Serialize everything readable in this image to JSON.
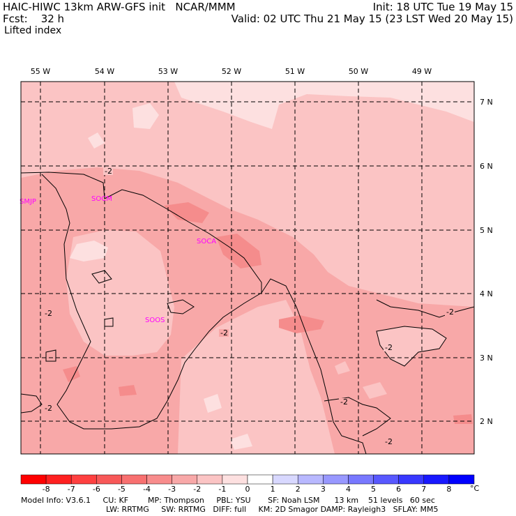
{
  "header": {
    "model": "HAIC-HIWC 13km ARW-GFS init",
    "org": "NCAR/MMM",
    "forecast_label": "Fcst:",
    "forecast_hours": "32 h",
    "field": "Lifted index",
    "init": "Init: 18 UTC Tue 19 May 15",
    "valid": "Valid: 02 UTC Thu 21 May 15 (23 LST Wed 20 May 15)"
  },
  "map": {
    "lon_labels": [
      "55 W",
      "54 W",
      "53 W",
      "52 W",
      "51 W",
      "50 W",
      "49 W"
    ],
    "lat_labels": [
      "7 N",
      "6 N",
      "5 N",
      "4 N",
      "3 N",
      "2 N"
    ],
    "contour_labels": [
      "-2",
      "-2",
      "-2",
      "-2",
      "-2",
      "-2",
      "-2",
      "-2"
    ],
    "stations": [
      "SMJP",
      "SOCM",
      "SOCA",
      "SOOS"
    ],
    "colors": {
      "li_minus1": "#fde0e0",
      "li_minus2": "#fbc4c4",
      "li_minus3": "#f8a8a8",
      "li_minus4": "#f58c8c",
      "station": "#ff00ff"
    }
  },
  "colorbar": {
    "ticks": [
      "-8",
      "-7",
      "-6",
      "-5",
      "-4",
      "-3",
      "-2",
      "-1",
      "0",
      "1",
      "2",
      "3",
      "4",
      "5",
      "6",
      "7",
      "8"
    ],
    "unit": "°C",
    "colors": [
      "#ff0000",
      "#ff2020",
      "#ff4040",
      "#f85858",
      "#f87070",
      "#f88c8c",
      "#f8a8a8",
      "#fbc4c4",
      "#fde0e0",
      "#ffffff",
      "#d8d8ff",
      "#b8b8ff",
      "#9898ff",
      "#7878ff",
      "#5858ff",
      "#3838ff",
      "#1818ff",
      "#0000ff"
    ]
  },
  "footer": {
    "line1": "Model Info: V3.6.1     CU: KF        MP: Thompson     PBL: YSU       SF: Noah LSM      13 km    51 levels   60 sec",
    "line2": "LW: RRTMG     SW: RRTMG   DIFF: full     KM: 2D Smagor DAMP: Rayleigh3   SFLAY: MM5"
  }
}
